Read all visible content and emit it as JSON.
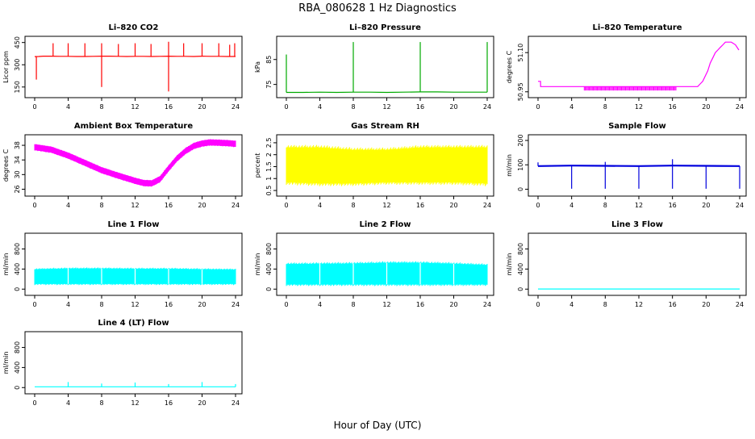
{
  "figure": {
    "title": "RBA_080628  1 Hz Diagnostics",
    "xlabel": "Hour of Day (UTC)"
  },
  "chart_data": [
    {
      "type": "line",
      "title": "Li–820 CO2",
      "ylabel": "Licor ppm",
      "color": "#ff0000",
      "xlim": [
        0,
        24
      ],
      "xticks": [
        0,
        4,
        8,
        12,
        16,
        20,
        24
      ],
      "ylim": [
        100,
        470
      ],
      "yticks": [
        150,
        300,
        450
      ],
      "series": [
        {
          "name": "baseline",
          "x": [
            0,
            0.5,
            1,
            2,
            3,
            4,
            5,
            6,
            7,
            8,
            9,
            10,
            11,
            12,
            13,
            14,
            15,
            16,
            17,
            18,
            19,
            20,
            21,
            22,
            23,
            24
          ],
          "y": [
            355,
            356,
            358,
            358,
            357,
            357,
            356,
            356,
            357,
            358,
            358,
            357,
            356,
            357,
            357,
            356,
            357,
            358,
            357,
            357,
            356,
            358,
            357,
            357,
            356,
            356
          ]
        },
        {
          "name": "spikes",
          "x": [
            0.2,
            2.2,
            4,
            6,
            8,
            10,
            12,
            13.9,
            16,
            17.8,
            20,
            22,
            23.3,
            23.9
          ],
          "y": [
            200,
            445,
            445,
            445,
            445,
            440,
            445,
            440,
            455,
            445,
            445,
            445,
            435,
            445
          ]
        },
        {
          "name": "dips",
          "x": [
            8,
            16
          ],
          "y": [
            150,
            120
          ]
        }
      ]
    },
    {
      "type": "line",
      "title": "Li–820 Pressure",
      "ylabel": "kPa",
      "color": "#00aa00",
      "xlim": [
        0,
        24
      ],
      "xticks": [
        0,
        4,
        8,
        12,
        16,
        20,
        24
      ],
      "ylim": [
        71,
        93
      ],
      "yticks": [
        75,
        85
      ],
      "series": [
        {
          "name": "baseline",
          "x": [
            0,
            2,
            4,
            6,
            8,
            10,
            12,
            14,
            16,
            18,
            20,
            22,
            24
          ],
          "y": [
            71.8,
            71.8,
            71.9,
            71.8,
            71.9,
            71.9,
            71.8,
            71.9,
            72.0,
            72.0,
            71.9,
            71.9,
            71.9
          ]
        },
        {
          "name": "spikes",
          "x": [
            0,
            8,
            16,
            24
          ],
          "y": [
            87,
            92,
            92,
            92
          ]
        }
      ]
    },
    {
      "type": "line",
      "title": "Li–820 Temperature",
      "ylabel": "degrees C",
      "color": "#ff00ff",
      "xlim": [
        0,
        24
      ],
      "xticks": [
        0,
        4,
        8,
        12,
        16,
        20,
        24
      ],
      "ylim": [
        50.94,
        51.15
      ],
      "yticks": [
        50.95,
        51.1
      ],
      "series": [
        {
          "name": "temp",
          "x": [
            0,
            0.3,
            0.31,
            19,
            19.3,
            19.6,
            19.9,
            20.2,
            20.5,
            20.8,
            21.1,
            21.4,
            21.7,
            22,
            22.3,
            23,
            23.5,
            23.9
          ],
          "y": [
            50.99,
            50.99,
            50.97,
            50.97,
            50.98,
            50.99,
            51.01,
            51.03,
            51.06,
            51.08,
            51.1,
            51.11,
            51.12,
            51.13,
            51.14,
            51.14,
            51.13,
            51.11
          ]
        },
        {
          "name": "noise-band",
          "x": [
            5.5,
            16.5
          ],
          "y": [
            50.955,
            50.97
          ]
        }
      ]
    },
    {
      "type": "area",
      "title": "Ambient Box Temperature",
      "ylabel": "degrees C",
      "color": "#ff00ff",
      "xlim": [
        0,
        24
      ],
      "xticks": [
        0,
        4,
        8,
        12,
        16,
        20,
        24
      ],
      "ylim": [
        25,
        40
      ],
      "yticks": [
        26,
        30,
        34,
        38
      ],
      "series": [
        {
          "name": "upper",
          "x": [
            0,
            2,
            4,
            6,
            8,
            10,
            12,
            13,
            14,
            15,
            16,
            17,
            18,
            19,
            20,
            21,
            22,
            23,
            24
          ],
          "y": [
            38.3,
            37.6,
            36,
            34,
            32,
            30.5,
            29.1,
            28.5,
            28.4,
            29.6,
            32.5,
            35.2,
            37.2,
            38.6,
            39.3,
            39.6,
            39.5,
            39.4,
            39.2
          ]
        },
        {
          "name": "lower",
          "x": [
            0,
            2,
            4,
            6,
            8,
            10,
            12,
            13,
            14,
            15,
            16,
            17,
            18,
            19,
            20,
            21,
            22,
            23,
            24
          ],
          "y": [
            36.7,
            36,
            34.4,
            32.4,
            30.4,
            28.9,
            27.5,
            26.9,
            26.8,
            28,
            30.9,
            33.6,
            35.6,
            37,
            37.7,
            38,
            37.9,
            37.8,
            37.6
          ]
        }
      ]
    },
    {
      "type": "area",
      "title": "Gas Stream RH",
      "ylabel": "percent",
      "color": "#ffff00",
      "xlim": [
        0,
        24
      ],
      "xticks": [
        0,
        4,
        8,
        12,
        16,
        20,
        24
      ],
      "ylim": [
        0.4,
        2.7
      ],
      "yticks": [
        0.5,
        1.0,
        1.5,
        2.0,
        2.5
      ],
      "series": [
        {
          "name": "upper",
          "x": [
            0,
            4,
            8,
            12,
            16,
            20,
            24
          ],
          "y": [
            2.3,
            2.3,
            2.2,
            2.2,
            2.3,
            2.3,
            2.3
          ]
        },
        {
          "name": "lower",
          "x": [
            0,
            4,
            8,
            12,
            16,
            20,
            24
          ],
          "y": [
            0.85,
            0.8,
            0.8,
            0.85,
            0.85,
            0.85,
            0.8
          ]
        }
      ]
    },
    {
      "type": "line",
      "title": "Sample Flow",
      "ylabel": "ml/min",
      "color": "#0000dd",
      "xlim": [
        0,
        24
      ],
      "xticks": [
        0,
        4,
        8,
        12,
        16,
        20,
        24
      ],
      "ylim": [
        -15,
        210
      ],
      "yticks": [
        0,
        100,
        200
      ],
      "series": [
        {
          "name": "baseline",
          "x": [
            0,
            4,
            8,
            12,
            16,
            20,
            24
          ],
          "y": [
            95,
            97,
            96,
            95,
            97,
            96,
            95
          ]
        },
        {
          "name": "dips",
          "x": [
            4,
            8,
            12,
            16,
            20,
            24
          ],
          "y": [
            2,
            2,
            2,
            2,
            2,
            2
          ]
        },
        {
          "name": "spikes",
          "x": [
            0,
            8,
            16
          ],
          "y": [
            110,
            112,
            123
          ]
        }
      ]
    },
    {
      "type": "area",
      "title": "Line 1 Flow",
      "ylabel": "ml/min",
      "color": "#00ffff",
      "xlim": [
        0,
        24
      ],
      "xticks": [
        0,
        4,
        8,
        12,
        16,
        20,
        24
      ],
      "ylim": [
        -60,
        1050
      ],
      "yticks": [
        0,
        400,
        800
      ],
      "series": [
        {
          "name": "upper",
          "x": [
            0,
            4,
            8,
            12,
            16,
            20,
            24
          ],
          "y": [
            395,
            410,
            410,
            405,
            405,
            395,
            390
          ]
        },
        {
          "name": "lower",
          "x": [
            0,
            4,
            8,
            12,
            16,
            20,
            24
          ],
          "y": [
            105,
            105,
            105,
            105,
            105,
            105,
            105
          ]
        }
      ]
    },
    {
      "type": "area",
      "title": "Line 2 Flow",
      "ylabel": "ml/min",
      "color": "#00ffff",
      "xlim": [
        0,
        24
      ],
      "xticks": [
        0,
        4,
        8,
        12,
        16,
        20,
        24
      ],
      "ylim": [
        -60,
        1050
      ],
      "yticks": [
        0,
        400,
        800
      ],
      "series": [
        {
          "name": "upper",
          "x": [
            0,
            4,
            8,
            12,
            16,
            20,
            24
          ],
          "y": [
            500,
            505,
            510,
            525,
            525,
            505,
            480
          ]
        },
        {
          "name": "lower",
          "x": [
            0,
            4,
            8,
            12,
            16,
            20,
            24
          ],
          "y": [
            95,
            95,
            95,
            95,
            95,
            95,
            95
          ]
        }
      ]
    },
    {
      "type": "line",
      "title": "Line 3 Flow",
      "ylabel": "ml/min",
      "color": "#00ffff",
      "xlim": [
        0,
        24
      ],
      "xticks": [
        0,
        4,
        8,
        12,
        16,
        20,
        24
      ],
      "ylim": [
        -60,
        1050
      ],
      "yticks": [
        0,
        400,
        800
      ],
      "series": [
        {
          "name": "flow",
          "x": [
            0,
            4,
            8,
            12,
            16,
            20,
            24
          ],
          "y": [
            3,
            3,
            3,
            3,
            3,
            3,
            3
          ]
        }
      ]
    },
    {
      "type": "line",
      "title": "Line 4 (LT) Flow",
      "ylabel": "ml/min",
      "color": "#00ffff",
      "xlim": [
        0,
        24
      ],
      "xticks": [
        0,
        4,
        8,
        12,
        16,
        20,
        24
      ],
      "ylim": [
        -60,
        1050
      ],
      "yticks": [
        0,
        400,
        800
      ],
      "series": [
        {
          "name": "baseline",
          "x": [
            0,
            4,
            8,
            12,
            16,
            20,
            24
          ],
          "y": [
            15,
            15,
            15,
            15,
            15,
            15,
            15
          ]
        },
        {
          "name": "spikes",
          "x": [
            4,
            8,
            12,
            16,
            20,
            24
          ],
          "y": [
            110,
            80,
            100,
            70,
            110,
            70
          ]
        }
      ]
    }
  ]
}
